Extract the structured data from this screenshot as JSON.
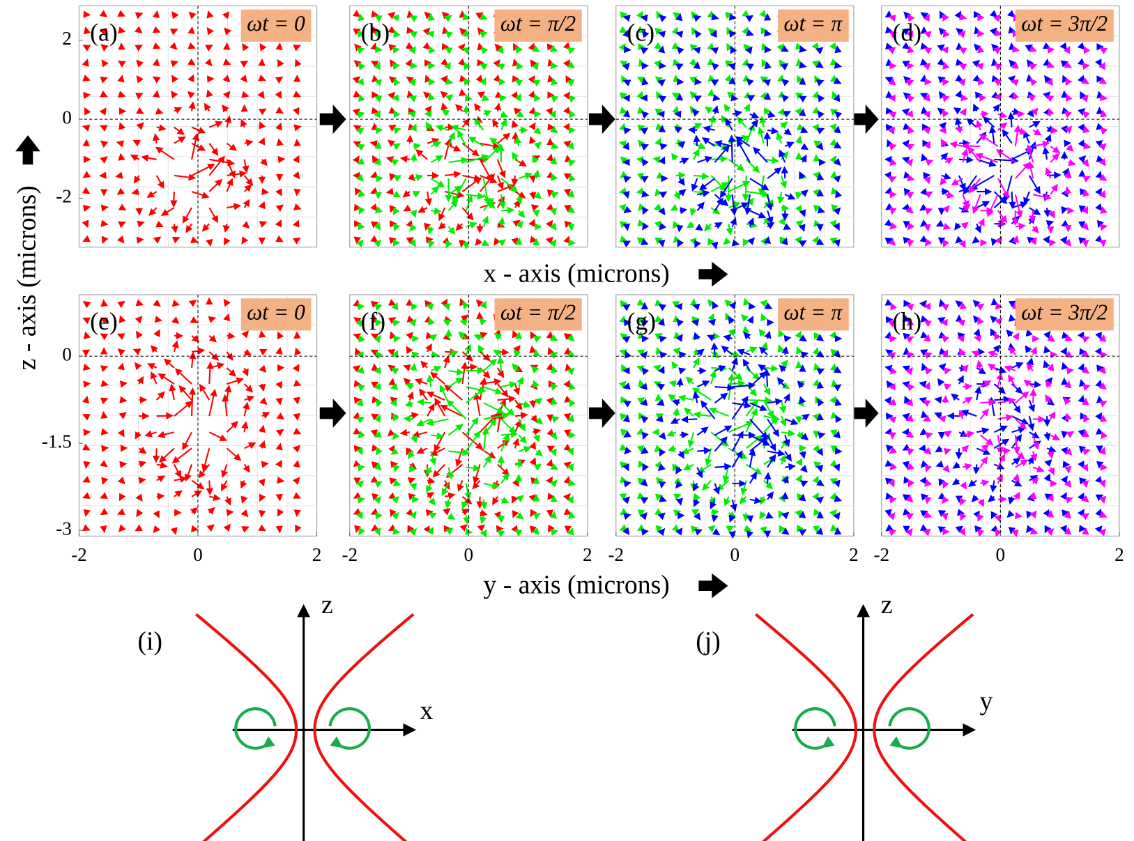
{
  "chart_data": [
    {
      "type": "quiver",
      "label": "(a)",
      "annotation": "ωt = 0",
      "colors": [
        "#ff0000"
      ],
      "xlim": [
        -2,
        2
      ],
      "ylim": [
        -3.24,
        2.87
      ],
      "yticks": [
        2,
        0,
        -2
      ]
    },
    {
      "type": "quiver",
      "label": "(b)",
      "annotation": "ωt = π/2",
      "colors": [
        "#ff0000",
        "#00ee00"
      ],
      "xlim": [
        -2,
        2
      ],
      "ylim": [
        -3.24,
        2.87
      ]
    },
    {
      "type": "quiver",
      "label": "(c)",
      "annotation": "ωt = π",
      "colors": [
        "#00ee00",
        "#0000ff"
      ],
      "xlim": [
        -2,
        2
      ],
      "ylim": [
        -3.24,
        2.87
      ]
    },
    {
      "type": "quiver",
      "label": "(d)",
      "annotation": "ωt = 3π/2",
      "colors": [
        "#0000ff",
        "#ff00ff"
      ],
      "xlim": [
        -2,
        2
      ],
      "ylim": [
        -3.24,
        2.87
      ]
    },
    {
      "type": "quiver",
      "label": "(e)",
      "annotation": "ωt = 0",
      "colors": [
        "#ff0000"
      ],
      "xlim": [
        -2,
        2
      ],
      "ylim": [
        -3.1,
        1.06
      ],
      "yticks": [
        0,
        -1.5,
        -3
      ],
      "xticks": [
        -2,
        0,
        2
      ]
    },
    {
      "type": "quiver",
      "label": "(f)",
      "annotation": "ωt = π/2",
      "colors": [
        "#ff0000",
        "#00ee00"
      ],
      "xlim": [
        -2,
        2
      ],
      "ylim": [
        -3.1,
        1.06
      ],
      "xticks": [
        -2,
        0,
        2
      ]
    },
    {
      "type": "quiver",
      "label": "(g)",
      "annotation": "ωt = π",
      "colors": [
        "#00ee00",
        "#0000ff"
      ],
      "xlim": [
        -2,
        2
      ],
      "ylim": [
        -3.1,
        1.06
      ],
      "xticks": [
        -2,
        0,
        2
      ]
    },
    {
      "type": "quiver",
      "label": "(h)",
      "annotation": "ωt = 3π/2",
      "colors": [
        "#0000ff",
        "#ff00ff"
      ],
      "xlim": [
        -2,
        2
      ],
      "ylim": [
        -3.1,
        1.06
      ],
      "xticks": [
        -2,
        0,
        2
      ]
    }
  ],
  "axis_labels": {
    "top_x": "x - axis (microns)",
    "bottom_x": "y - axis (microns)",
    "z": "z - axis (microns)"
  },
  "diagrams": [
    {
      "label": "(i)",
      "vertical_axis": "z",
      "horizontal_axis": "x"
    },
    {
      "label": "(j)",
      "vertical_axis": "z",
      "horizontal_axis": "y"
    }
  ]
}
